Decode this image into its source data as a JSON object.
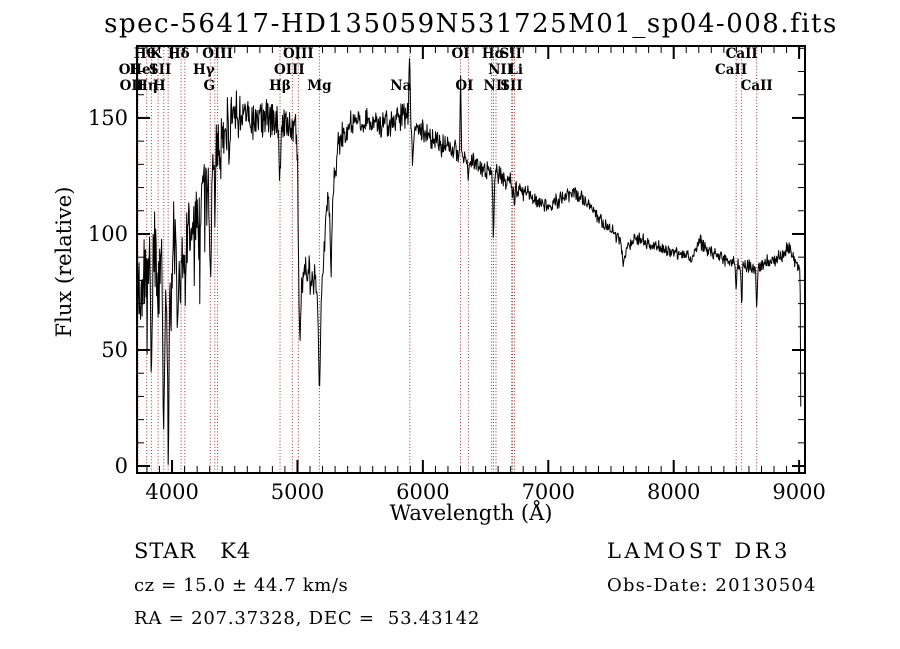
{
  "title": "spec-56417-HD135059N531725M01_sp04-008.fits",
  "annotations": {
    "class_label": "STAR",
    "subclass": "K4",
    "cz_line": "cz = 15.0 ± 44.7 km/s",
    "radec_line": "RA = 207.37328, DEC =  53.43142",
    "survey": "LAMOST DR3",
    "obs_date_line": "Obs-Date: 20130504"
  },
  "axes": {
    "x_label": "Wavelength (Å)",
    "y_label": "Flux (relative)"
  },
  "chart_data": {
    "type": "line",
    "title": "spec-56417-HD135059N531725M01_sp04-008.fits",
    "xlabel": "Wavelength (Å)",
    "ylabel": "Flux (relative)",
    "xlim": [
      3720.5,
      9047
    ],
    "ylim": [
      -3,
      181
    ],
    "x_major_ticks": [
      4000,
      5000,
      6000,
      7000,
      8000,
      9000
    ],
    "x_minor_step": 100,
    "y_major_ticks": [
      0,
      50,
      100,
      150
    ],
    "y_minor_step": 10,
    "grid": false,
    "legend": "none",
    "spectrum_color": "#000000",
    "line_color": "#9b2d28",
    "sample_start": 3721,
    "sample_end": 9014,
    "sample_step": 4,
    "noise_seed": 11,
    "continuum_points": [
      [
        3721,
        100
      ],
      [
        3740,
        95
      ],
      [
        3760,
        100
      ],
      [
        3780,
        97
      ],
      [
        3800,
        99
      ],
      [
        3820,
        97
      ],
      [
        3845,
        93
      ],
      [
        3870,
        95
      ],
      [
        3900,
        93
      ],
      [
        3925,
        90
      ],
      [
        3950,
        88
      ],
      [
        3975,
        90
      ],
      [
        4000,
        96
      ],
      [
        4030,
        97
      ],
      [
        4060,
        98
      ],
      [
        4090,
        100
      ],
      [
        4120,
        104
      ],
      [
        4150,
        110
      ],
      [
        4180,
        115
      ],
      [
        4210,
        121
      ],
      [
        4240,
        126
      ],
      [
        4270,
        128
      ],
      [
        4300,
        130
      ],
      [
        4330,
        134
      ],
      [
        4360,
        139
      ],
      [
        4390,
        143
      ],
      [
        4420,
        147
      ],
      [
        4450,
        150
      ],
      [
        4480,
        152
      ],
      [
        4510,
        153
      ],
      [
        4540,
        151
      ],
      [
        4570,
        152
      ],
      [
        4600,
        152
      ],
      [
        4630,
        150
      ],
      [
        4660,
        149
      ],
      [
        4690,
        150
      ],
      [
        4720,
        150
      ],
      [
        4750,
        149
      ],
      [
        4780,
        150
      ],
      [
        4810,
        149
      ],
      [
        4840,
        148
      ],
      [
        4870,
        146
      ],
      [
        4900,
        148
      ],
      [
        4930,
        149
      ],
      [
        4960,
        148
      ],
      [
        4985,
        144
      ],
      [
        5000,
        138
      ],
      [
        5012,
        70
      ],
      [
        5022,
        58
      ],
      [
        5035,
        78
      ],
      [
        5055,
        85
      ],
      [
        5075,
        80
      ],
      [
        5095,
        84
      ],
      [
        5115,
        78
      ],
      [
        5135,
        80
      ],
      [
        5155,
        72
      ],
      [
        5168,
        60
      ],
      [
        5175,
        50
      ],
      [
        5185,
        62
      ],
      [
        5200,
        78
      ],
      [
        5212,
        92
      ],
      [
        5225,
        105
      ],
      [
        5240,
        118
      ],
      [
        5255,
        108
      ],
      [
        5268,
        98
      ],
      [
        5282,
        115
      ],
      [
        5300,
        128
      ],
      [
        5320,
        136
      ],
      [
        5345,
        141
      ],
      [
        5370,
        144
      ],
      [
        5400,
        146
      ],
      [
        5440,
        147
      ],
      [
        5480,
        148
      ],
      [
        5520,
        148
      ],
      [
        5560,
        149
      ],
      [
        5600,
        148
      ],
      [
        5640,
        148
      ],
      [
        5680,
        147
      ],
      [
        5720,
        147
      ],
      [
        5760,
        148
      ],
      [
        5800,
        150
      ],
      [
        5840,
        151
      ],
      [
        5875,
        152
      ],
      [
        5920,
        145
      ],
      [
        5960,
        146
      ],
      [
        6000,
        144
      ],
      [
        6050,
        142
      ],
      [
        6100,
        140
      ],
      [
        6150,
        138
      ],
      [
        6200,
        137
      ],
      [
        6250,
        136
      ],
      [
        6300,
        134
      ],
      [
        6350,
        132
      ],
      [
        6400,
        131
      ],
      [
        6450,
        129
      ],
      [
        6500,
        128
      ],
      [
        6550,
        127
      ],
      [
        6600,
        125
      ],
      [
        6650,
        124
      ],
      [
        6700,
        122
      ],
      [
        6750,
        120
      ],
      [
        6800,
        118
      ],
      [
        6850,
        117
      ],
      [
        6900,
        115
      ],
      [
        6950,
        113
      ],
      [
        7000,
        112
      ],
      [
        7050,
        113
      ],
      [
        7100,
        115
      ],
      [
        7150,
        116
      ],
      [
        7200,
        118
      ],
      [
        7250,
        117
      ],
      [
        7300,
        114
      ],
      [
        7350,
        111
      ],
      [
        7400,
        107
      ],
      [
        7450,
        104
      ],
      [
        7500,
        101
      ],
      [
        7550,
        99
      ],
      [
        7600,
        93
      ],
      [
        7650,
        96
      ],
      [
        7700,
        98
      ],
      [
        7750,
        97
      ],
      [
        7800,
        96
      ],
      [
        7850,
        95
      ],
      [
        7900,
        94
      ],
      [
        7950,
        93
      ],
      [
        8000,
        92
      ],
      [
        8050,
        91
      ],
      [
        8100,
        90
      ],
      [
        8130,
        89
      ],
      [
        8170,
        93
      ],
      [
        8210,
        97
      ],
      [
        8250,
        94
      ],
      [
        8300,
        92
      ],
      [
        8350,
        91
      ],
      [
        8400,
        89
      ],
      [
        8450,
        88
      ],
      [
        8500,
        87
      ],
      [
        8550,
        86
      ],
      [
        8600,
        86
      ],
      [
        8650,
        85
      ],
      [
        8700,
        86
      ],
      [
        8750,
        88
      ],
      [
        8800,
        89
      ],
      [
        8850,
        90
      ],
      [
        8900,
        93
      ],
      [
        8930,
        94
      ],
      [
        8960,
        90
      ],
      [
        8985,
        87
      ],
      [
        9000,
        86
      ],
      [
        9006,
        84
      ],
      [
        9008,
        84
      ],
      [
        9011,
        60
      ],
      [
        9013,
        25
      ]
    ],
    "noise_profile": [
      [
        3721,
        14
      ],
      [
        3900,
        15
      ],
      [
        4000,
        12
      ],
      [
        4150,
        13
      ],
      [
        4300,
        10
      ],
      [
        4450,
        8
      ],
      [
        4700,
        6.5
      ],
      [
        5000,
        6
      ],
      [
        5300,
        5
      ],
      [
        5600,
        4.5
      ],
      [
        5900,
        4
      ],
      [
        6300,
        3.2
      ],
      [
        6700,
        3
      ],
      [
        7100,
        2.6
      ],
      [
        7600,
        2.2
      ],
      [
        8200,
        2.1
      ],
      [
        8700,
        2.2
      ],
      [
        9014,
        2.5
      ]
    ],
    "line_features": [
      [
        3727,
        -25,
        12
      ],
      [
        3750,
        -28,
        18
      ],
      [
        3770,
        -30,
        14
      ],
      [
        3798,
        -24,
        16
      ],
      [
        3835,
        -45,
        16
      ],
      [
        3889,
        -28,
        16
      ],
      [
        3934,
        -68,
        18
      ],
      [
        3969,
        -72,
        18
      ],
      [
        3995,
        -30,
        14
      ],
      [
        4045,
        -35,
        14
      ],
      [
        4072,
        -18,
        14
      ],
      [
        4102,
        -26,
        16
      ],
      [
        4144,
        -16,
        14
      ],
      [
        4180,
        -22,
        12
      ],
      [
        4226,
        -30,
        14
      ],
      [
        4305,
        -42,
        20
      ],
      [
        4341,
        -20,
        16
      ],
      [
        4383,
        -16,
        14
      ],
      [
        4455,
        -12,
        14
      ],
      [
        4861,
        -26,
        14
      ],
      [
        5175,
        -20,
        12
      ],
      [
        5268,
        -15,
        12
      ],
      [
        5893,
        27,
        12
      ],
      [
        5918,
        -14,
        14
      ],
      [
        6301,
        33,
        8
      ],
      [
        6363,
        -8,
        10
      ],
      [
        6563,
        -27,
        11
      ],
      [
        6716,
        -7,
        9
      ],
      [
        6731,
        -9,
        9
      ],
      [
        7600,
        -5,
        26
      ],
      [
        8498,
        -12,
        10
      ],
      [
        8542,
        -15,
        10
      ],
      [
        8662,
        -17,
        10
      ]
    ],
    "spectral_lines": [
      {
        "label": "Hθ",
        "wavelength": 3798,
        "row": 1,
        "dx": -2
      },
      {
        "label": "K",
        "wavelength": 3934,
        "row": 1,
        "dx": -8
      },
      {
        "label": "Hδ",
        "wavelength": 4102,
        "row": 1,
        "dx": -6
      },
      {
        "label": "OIII",
        "wavelength": 4363,
        "row": 1,
        "dx": 0
      },
      {
        "label": "OIII",
        "wavelength": 5007,
        "row": 1,
        "dx": 0
      },
      {
        "label": "OI",
        "wavelength": 6300,
        "row": 1,
        "dx": 0
      },
      {
        "label": "Hα",
        "wavelength": 6563,
        "row": 1,
        "dx": 0
      },
      {
        "label": "SII",
        "wavelength": 6716,
        "row": 1,
        "dx": -2
      },
      {
        "label": "CaII",
        "wavelength": 8542,
        "row": 1,
        "dx": 0
      },
      {
        "label": "OI",
        "wavelength": 3727,
        "row": 2,
        "dx": -10
      },
      {
        "label": "HeI",
        "wavelength": 3889,
        "row": 2,
        "dx": -15
      },
      {
        "label": "SII",
        "wavelength": 4072,
        "row": 2,
        "dx": -21
      },
      {
        "label": "Hγ",
        "wavelength": 4341,
        "row": 2,
        "dx": -11
      },
      {
        "label": "OIII",
        "wavelength": 4959,
        "row": 2,
        "dx": -3
      },
      {
        "label": "NII",
        "wavelength": 6548,
        "row": 2,
        "dx": 9
      },
      {
        "label": "Li",
        "wavelength": 6708,
        "row": 2,
        "dx": 4
      },
      {
        "label": "CaII",
        "wavelength": 8498,
        "row": 2,
        "dx": -5
      },
      {
        "label": "OII",
        "wavelength": 3727,
        "row": 3,
        "dx": -6
      },
      {
        "label": "Hη",
        "wavelength": 3835,
        "row": 3,
        "dx": -5
      },
      {
        "label": "H",
        "wavelength": 3969,
        "row": 3,
        "dx": -9
      },
      {
        "label": "G",
        "wavelength": 4305,
        "row": 3,
        "dx": -1
      },
      {
        "label": "Hβ",
        "wavelength": 4861,
        "row": 3,
        "dx": 0
      },
      {
        "label": "Mg",
        "wavelength": 5175,
        "row": 3,
        "dx": 0
      },
      {
        "label": "Na",
        "wavelength": 5896,
        "row": 3,
        "dx": -9
      },
      {
        "label": "OI",
        "wavelength": 6363,
        "row": 3,
        "dx": -4
      },
      {
        "label": "NII",
        "wavelength": 6583,
        "row": 3,
        "dx": 0
      },
      {
        "label": "SII",
        "wavelength": 6731,
        "row": 3,
        "dx": -3
      },
      {
        "label": "CaII",
        "wavelength": 8662,
        "row": 3,
        "dx": 0
      }
    ]
  }
}
